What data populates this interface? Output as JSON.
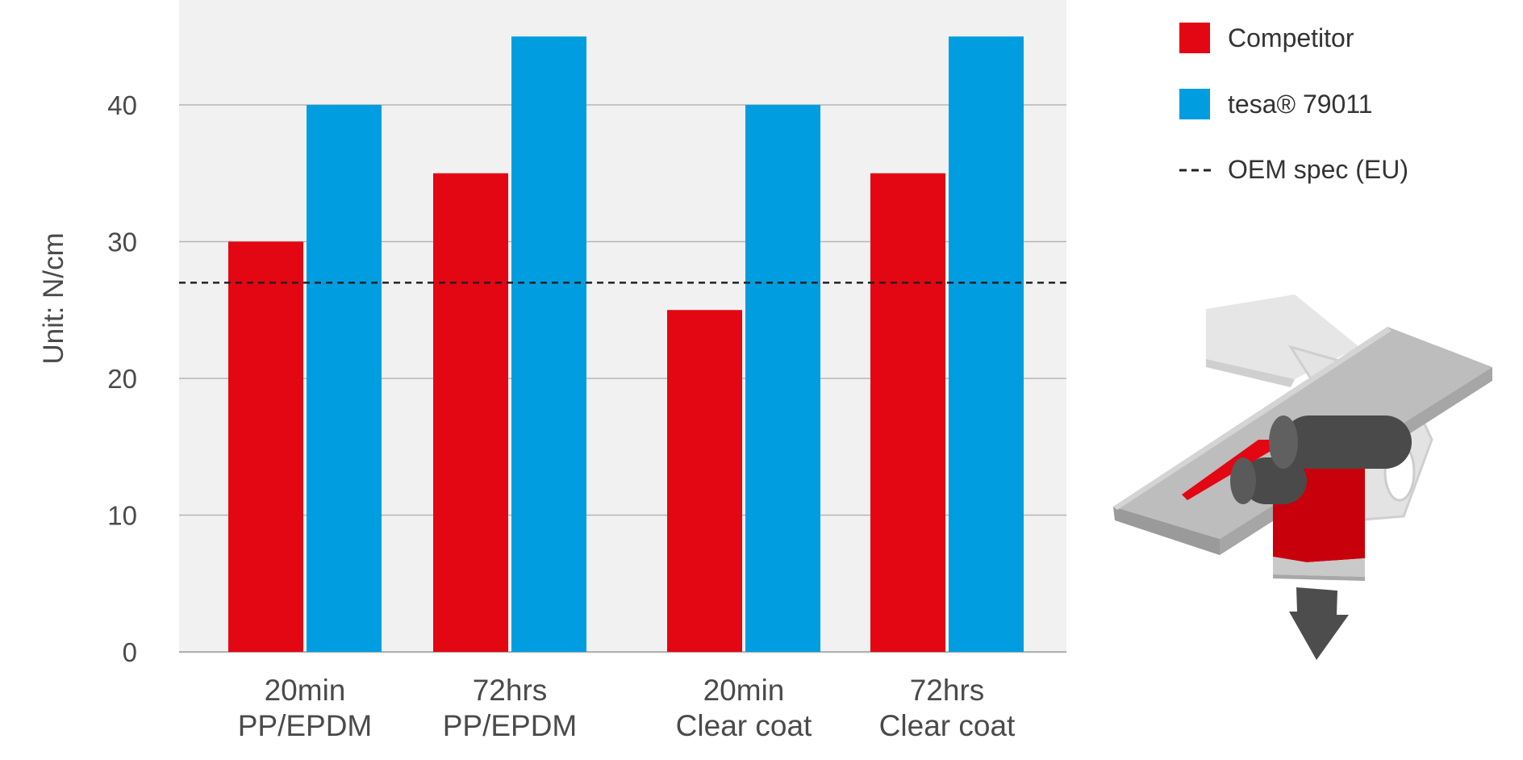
{
  "chart_data": {
    "type": "bar",
    "ylabel": "Unit: N/cm",
    "ylim": [
      0,
      45
    ],
    "yticks": [
      0,
      10,
      20,
      30,
      40
    ],
    "grid": true,
    "categories": [
      [
        "20min",
        "PP/EPDM"
      ],
      [
        "72hrs",
        "PP/EPDM"
      ],
      [
        "20min",
        "Clear coat"
      ],
      [
        "72hrs",
        "Clear coat"
      ]
    ],
    "series": [
      {
        "name": "Competitor",
        "color": "#e30613",
        "values": [
          30,
          35,
          25,
          35
        ]
      },
      {
        "name": "tesa® 79011",
        "color": "#009ee0",
        "values": [
          40,
          45,
          40,
          45
        ]
      }
    ],
    "reference_line": {
      "name": "OEM spec (EU)",
      "value": 27,
      "style": "dashed",
      "color": "#222222"
    },
    "legend_position": "top-right",
    "background_color": "#f1f1f1",
    "illustration": "peel-test-diagram-icon"
  }
}
